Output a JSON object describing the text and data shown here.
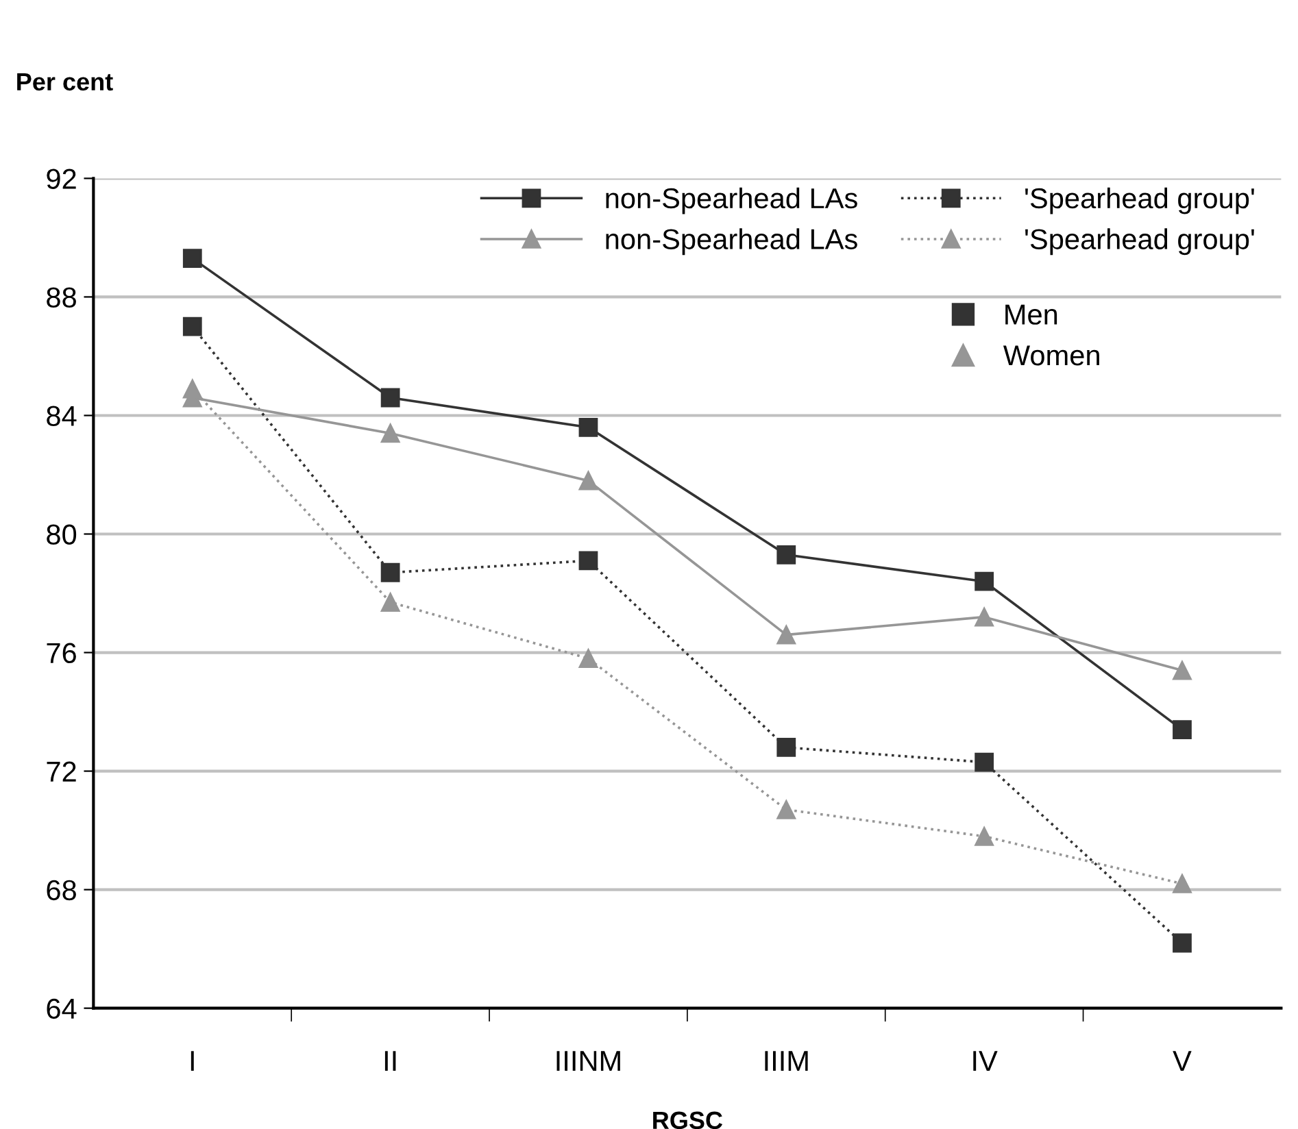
{
  "chart_data": {
    "type": "line",
    "xlabel": "RGSC",
    "categories": [
      "I",
      "II",
      "IIINM",
      "IIIM",
      "IV",
      "V"
    ],
    "series": [
      {
        "name": "non-Spearhead LAs",
        "color": "#333333",
        "marker": "square",
        "line_style": "solid",
        "values": [
          89.3,
          84.6,
          83.6,
          79.3,
          78.4,
          73.4
        ]
      },
      {
        "name": "'Spearhead group'",
        "color": "#333333",
        "marker": "square",
        "line_style": "dotted",
        "values": [
          87.0,
          78.7,
          79.1,
          72.8,
          72.3,
          66.2
        ]
      },
      {
        "name": "non-Spearhead LAs",
        "color": "#969696",
        "marker": "triangle",
        "line_style": "solid",
        "values": [
          84.6,
          83.4,
          81.8,
          76.6,
          77.2,
          75.4
        ]
      },
      {
        "name": "'Spearhead group'",
        "color": "#969696",
        "marker": "triangle",
        "line_style": "dotted",
        "values": [
          84.9,
          77.7,
          75.8,
          70.7,
          69.8,
          68.2
        ]
      }
    ],
    "annotations": [
      "Per cent",
      "Men",
      "Women"
    ],
    "ylim": [
      64,
      92
    ],
    "yticks": [
      64,
      68,
      72,
      76,
      80,
      84,
      88,
      92
    ],
    "grid": "y",
    "legend": "top right"
  }
}
